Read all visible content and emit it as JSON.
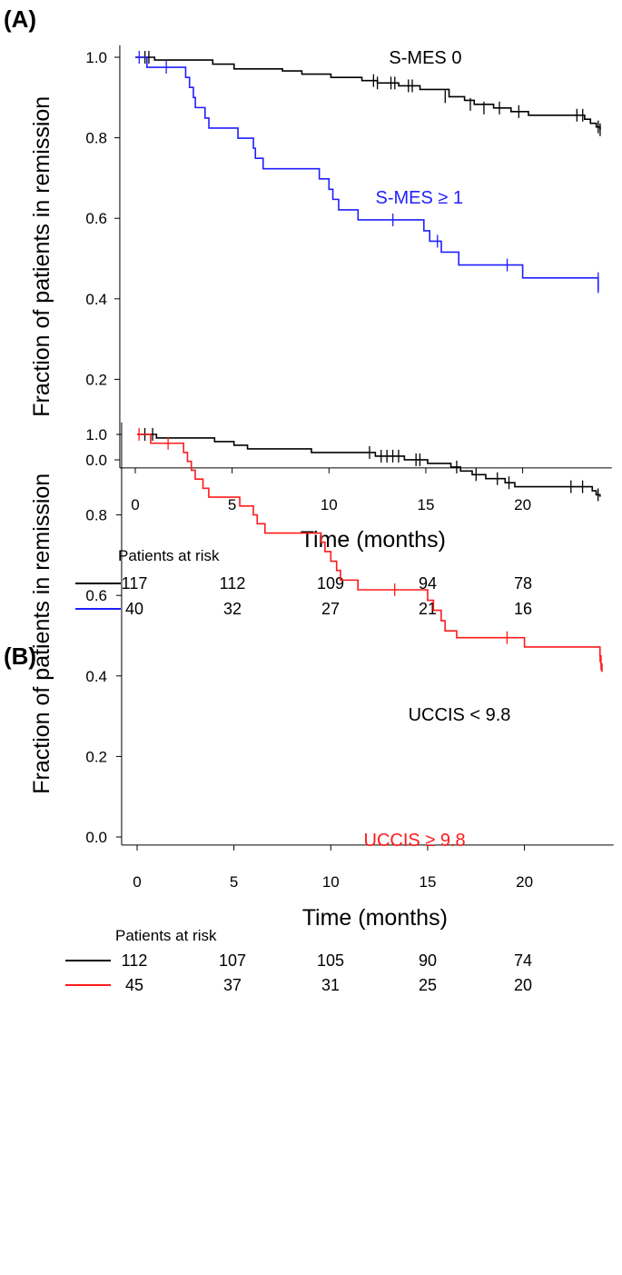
{
  "chart_data": [
    {
      "type": "line",
      "subtype": "kaplan-meier",
      "panel_label": "(A)",
      "xlabel": "Time (months)",
      "ylabel": "Fraction of patients in remission",
      "xlim": [
        -0.8,
        24.6
      ],
      "ylim": [
        -0.02,
        1.03
      ],
      "xticks": [
        0,
        5,
        10,
        15,
        20
      ],
      "yticks": [
        0.0,
        0.2,
        0.4,
        0.6,
        0.8,
        1.0
      ],
      "ytick_labels": [
        "0.0",
        "0.2",
        "0.4",
        "0.6",
        "0.8",
        "1.0"
      ],
      "grid": false,
      "series": [
        {
          "name": "S-MES 0",
          "color": "#000000",
          "steps": [
            [
              0,
              1.0
            ],
            [
              1.0,
              0.993
            ],
            [
              4.0,
              0.983
            ],
            [
              5.1,
              0.971
            ],
            [
              7.6,
              0.966
            ],
            [
              8.6,
              0.958
            ],
            [
              10.1,
              0.95
            ],
            [
              11.7,
              0.942
            ],
            [
              12.5,
              0.936
            ],
            [
              13.6,
              0.929
            ],
            [
              14.7,
              0.92
            ],
            [
              16.2,
              0.902
            ],
            [
              17.0,
              0.893
            ],
            [
              17.5,
              0.883
            ],
            [
              18.5,
              0.874
            ],
            [
              19.4,
              0.865
            ],
            [
              20.3,
              0.856
            ],
            [
              23.2,
              0.846
            ],
            [
              23.5,
              0.836
            ],
            [
              23.8,
              0.827
            ],
            [
              24.0,
              0.82
            ]
          ],
          "censored": [
            [
              0.5,
              1.0
            ],
            [
              0.7,
              1.0
            ],
            [
              12.3,
              0.942
            ],
            [
              12.5,
              0.936
            ],
            [
              13.2,
              0.936
            ],
            [
              13.4,
              0.936
            ],
            [
              14.1,
              0.929
            ],
            [
              14.3,
              0.929
            ],
            [
              16.0,
              0.902
            ],
            [
              17.3,
              0.883
            ],
            [
              18.0,
              0.874
            ],
            [
              18.8,
              0.874
            ],
            [
              19.8,
              0.865
            ],
            [
              22.8,
              0.856
            ],
            [
              23.1,
              0.856
            ],
            [
              23.9,
              0.827
            ],
            [
              24.0,
              0.82
            ]
          ]
        },
        {
          "name": "S-MES ≥ 1",
          "color": "#1f1fff",
          "steps": [
            [
              0,
              1.0
            ],
            [
              0.6,
              0.975
            ],
            [
              2.6,
              0.95
            ],
            [
              2.8,
              0.925
            ],
            [
              3.0,
              0.9
            ],
            [
              3.1,
              0.875
            ],
            [
              3.6,
              0.849
            ],
            [
              3.8,
              0.824
            ],
            [
              5.3,
              0.799
            ],
            [
              6.1,
              0.774
            ],
            [
              6.2,
              0.749
            ],
            [
              6.6,
              0.723
            ],
            [
              9.5,
              0.698
            ],
            [
              10.0,
              0.672
            ],
            [
              10.2,
              0.647
            ],
            [
              10.5,
              0.621
            ],
            [
              11.5,
              0.596
            ],
            [
              14.9,
              0.569
            ],
            [
              15.2,
              0.543
            ],
            [
              15.8,
              0.516
            ],
            [
              16.7,
              0.484
            ],
            [
              20.0,
              0.452
            ],
            [
              23.9,
              0.42
            ]
          ],
          "censored": [
            [
              0.2,
              1.0
            ],
            [
              1.6,
              0.975
            ],
            [
              13.3,
              0.596
            ],
            [
              15.6,
              0.543
            ],
            [
              19.2,
              0.484
            ],
            [
              23.9,
              0.45
            ],
            [
              23.9,
              0.43
            ]
          ]
        }
      ],
      "annotations": [
        {
          "text": "S-MES 0",
          "series": 0,
          "x": 13.1,
          "y": 1.0
        },
        {
          "text": "S-MES ≥ 1",
          "series": 1,
          "x": 12.4,
          "y": 0.63
        }
      ],
      "risk_table": {
        "title": "Patients at risk",
        "times": [
          0,
          5,
          10,
          15,
          20
        ],
        "rows": [
          {
            "series": 0,
            "values": [
              "117",
              "112",
              "109",
              "94",
              "78"
            ]
          },
          {
            "series": 1,
            "values": [
              "40",
              "32",
              "27",
              "21",
              "16"
            ]
          }
        ]
      }
    },
    {
      "type": "line",
      "subtype": "kaplan-meier",
      "panel_label": "(B)",
      "xlabel": "Time (months)",
      "ylabel": "Fraction of patients in remission",
      "xlim": [
        -0.8,
        24.6
      ],
      "ylim": [
        -0.02,
        1.03
      ],
      "xticks": [
        0,
        5,
        10,
        15,
        20
      ],
      "yticks": [
        0.0,
        0.2,
        0.4,
        0.6,
        0.8,
        1.0
      ],
      "ytick_labels": [
        "0.0",
        "0.2",
        "0.4",
        "0.6",
        "0.8",
        "1.0"
      ],
      "grid": false,
      "series": [
        {
          "name": "UCCIS < 9.8",
          "color": "#000000",
          "steps": [
            [
              0,
              1.0
            ],
            [
              1.0,
              0.991
            ],
            [
              4.0,
              0.982
            ],
            [
              5.0,
              0.973
            ],
            [
              5.7,
              0.964
            ],
            [
              9.0,
              0.955
            ],
            [
              12.3,
              0.946
            ],
            [
              13.8,
              0.937
            ],
            [
              15.0,
              0.928
            ],
            [
              16.2,
              0.919
            ],
            [
              16.7,
              0.909
            ],
            [
              17.3,
              0.9
            ],
            [
              18.0,
              0.89
            ],
            [
              19.0,
              0.88
            ],
            [
              19.5,
              0.87
            ],
            [
              23.5,
              0.86
            ],
            [
              23.7,
              0.85
            ],
            [
              23.9,
              0.845
            ]
          ],
          "censored": [
            [
              0.4,
              1.0
            ],
            [
              0.8,
              1.0
            ],
            [
              12.0,
              0.955
            ],
            [
              12.6,
              0.946
            ],
            [
              12.9,
              0.946
            ],
            [
              13.2,
              0.946
            ],
            [
              13.5,
              0.946
            ],
            [
              14.4,
              0.937
            ],
            [
              14.6,
              0.937
            ],
            [
              16.5,
              0.919
            ],
            [
              17.5,
              0.9
            ],
            [
              18.6,
              0.89
            ],
            [
              19.2,
              0.88
            ],
            [
              22.4,
              0.87
            ],
            [
              23.0,
              0.87
            ],
            [
              23.8,
              0.85
            ]
          ]
        },
        {
          "name": "UCCIS ≥ 9.8",
          "color": "#ff1a1a",
          "steps": [
            [
              0,
              1.0
            ],
            [
              0.7,
              0.978
            ],
            [
              2.4,
              0.955
            ],
            [
              2.6,
              0.933
            ],
            [
              2.8,
              0.911
            ],
            [
              3.0,
              0.889
            ],
            [
              3.4,
              0.866
            ],
            [
              3.7,
              0.844
            ],
            [
              5.3,
              0.822
            ],
            [
              6.0,
              0.8
            ],
            [
              6.2,
              0.778
            ],
            [
              6.6,
              0.755
            ],
            [
              9.5,
              0.732
            ],
            [
              9.7,
              0.709
            ],
            [
              10.0,
              0.685
            ],
            [
              10.3,
              0.662
            ],
            [
              10.5,
              0.638
            ],
            [
              11.4,
              0.614
            ],
            [
              15.0,
              0.588
            ],
            [
              15.3,
              0.563
            ],
            [
              15.7,
              0.537
            ],
            [
              15.9,
              0.512
            ],
            [
              16.5,
              0.495
            ],
            [
              20.0,
              0.472
            ],
            [
              23.9,
              0.45
            ],
            [
              23.95,
              0.43
            ],
            [
              24.0,
              0.41
            ]
          ],
          "censored": [
            [
              0.1,
              1.0
            ],
            [
              1.6,
              0.978
            ],
            [
              13.3,
              0.614
            ],
            [
              19.1,
              0.495
            ],
            [
              23.9,
              0.45
            ],
            [
              23.95,
              0.43
            ]
          ]
        }
      ],
      "annotations": [
        {
          "text": "UCCIS < 9.8",
          "series": 0,
          "x": 14.0,
          "y": 0.96
        },
        {
          "text": "UCCIS ≥ 9.8",
          "series": 1,
          "x": 11.7,
          "y": 0.66
        }
      ],
      "risk_table": {
        "title": "Patients at risk",
        "times": [
          0,
          5,
          10,
          15,
          20
        ],
        "rows": [
          {
            "series": 0,
            "values": [
              "112",
              "107",
              "105",
              "90",
              "74"
            ]
          },
          {
            "series": 1,
            "values": [
              "45",
              "37",
              "31",
              "25",
              "20"
            ]
          }
        ]
      }
    }
  ]
}
